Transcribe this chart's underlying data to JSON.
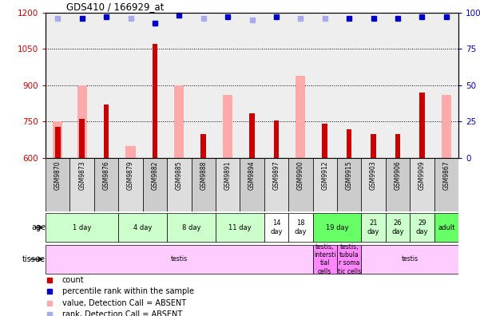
{
  "title": "GDS410 / 166929_at",
  "samples": [
    "GSM9870",
    "GSM9873",
    "GSM9876",
    "GSM9879",
    "GSM9882",
    "GSM9885",
    "GSM9888",
    "GSM9891",
    "GSM9894",
    "GSM9897",
    "GSM9900",
    "GSM9912",
    "GSM9915",
    "GSM9903",
    "GSM9906",
    "GSM9909",
    "GSM9867"
  ],
  "count_values": [
    730,
    760,
    820,
    null,
    1070,
    null,
    700,
    null,
    785,
    755,
    null,
    740,
    720,
    700,
    700,
    870,
    null
  ],
  "absent_values": [
    750,
    900,
    null,
    650,
    null,
    900,
    null,
    860,
    null,
    null,
    940,
    null,
    null,
    null,
    null,
    null,
    860
  ],
  "rank_pct": [
    96,
    96,
    97,
    96,
    93,
    98,
    96,
    97,
    95,
    97,
    96,
    96,
    96,
    96,
    96,
    97,
    97
  ],
  "rank_absent": [
    true,
    false,
    false,
    true,
    false,
    false,
    true,
    false,
    true,
    false,
    true,
    true,
    false,
    false,
    false,
    false,
    false
  ],
  "ylim_left": [
    600,
    1200
  ],
  "ylim_right": [
    0,
    100
  ],
  "yticks_left": [
    600,
    750,
    900,
    1050,
    1200
  ],
  "yticks_right": [
    0,
    25,
    50,
    75,
    100
  ],
  "grid_lines": [
    750,
    900,
    1050
  ],
  "age_groups": [
    {
      "label": "1 day",
      "start": 0,
      "end": 2,
      "color": "#ccffcc"
    },
    {
      "label": "4 day",
      "start": 3,
      "end": 4,
      "color": "#ccffcc"
    },
    {
      "label": "8 day",
      "start": 5,
      "end": 6,
      "color": "#ccffcc"
    },
    {
      "label": "11 day",
      "start": 7,
      "end": 8,
      "color": "#ccffcc"
    },
    {
      "label": "14\nday",
      "start": 9,
      "end": 9,
      "color": "#ffffff"
    },
    {
      "label": "18\nday",
      "start": 10,
      "end": 10,
      "color": "#ffffff"
    },
    {
      "label": "19 day",
      "start": 11,
      "end": 12,
      "color": "#66ff66"
    },
    {
      "label": "21\nday",
      "start": 13,
      "end": 13,
      "color": "#ccffcc"
    },
    {
      "label": "26\nday",
      "start": 14,
      "end": 14,
      "color": "#ccffcc"
    },
    {
      "label": "29\nday",
      "start": 15,
      "end": 15,
      "color": "#ccffcc"
    },
    {
      "label": "adult",
      "start": 16,
      "end": 16,
      "color": "#66ff66"
    }
  ],
  "tissue_groups": [
    {
      "label": "testis",
      "start": 0,
      "end": 10,
      "color": "#ffccff"
    },
    {
      "label": "testis,\nintersti\ntial\ncells",
      "start": 11,
      "end": 11,
      "color": "#ff88ff"
    },
    {
      "label": "testis,\ntubula\nr soma\ntic cells",
      "start": 12,
      "end": 12,
      "color": "#ff88ff"
    },
    {
      "label": "testis",
      "start": 13,
      "end": 16,
      "color": "#ffccff"
    }
  ],
  "bar_color_dark": "#cc0000",
  "bar_color_light": "#ffaaaa",
  "rank_color_dark": "#0000cc",
  "rank_color_light": "#aaaaee",
  "bg_color": "#ffffff",
  "plot_bg": "#eeeeee",
  "tick_label_color_left": "#cc0000",
  "tick_label_color_right": "#0000cc",
  "sample_cell_colors": [
    "#cccccc",
    "#dddddd",
    "#cccccc",
    "#dddddd",
    "#cccccc",
    "#dddddd",
    "#cccccc",
    "#dddddd",
    "#cccccc",
    "#dddddd",
    "#cccccc",
    "#dddddd",
    "#cccccc",
    "#dddddd",
    "#cccccc",
    "#dddddd",
    "#cccccc"
  ]
}
